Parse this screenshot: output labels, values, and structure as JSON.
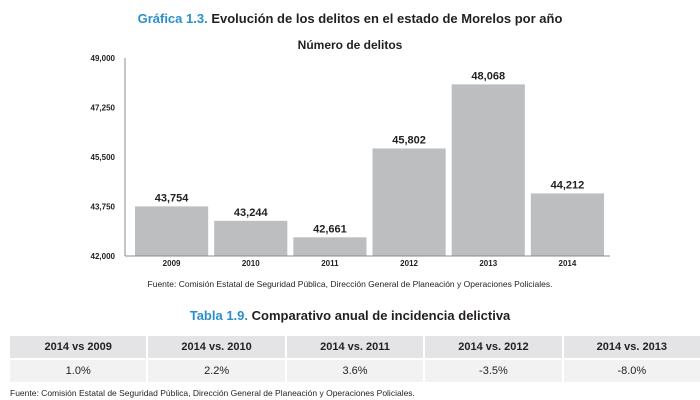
{
  "figure": {
    "title_number": "Gráfica 1.3.",
    "title_text": "Evolución de los delitos en el estado de Morelos por año",
    "source": "Fuente: Comisión Estatal de Seguridad Pública, Dirección General de Planeación y Operaciones Policiales."
  },
  "chart_data": {
    "type": "bar",
    "title": "Número de delitos",
    "xlabel": "",
    "ylabel": "",
    "categories": [
      "2009",
      "2010",
      "2011",
      "2012",
      "2013",
      "2014"
    ],
    "values": [
      43754,
      43244,
      42661,
      45802,
      48068,
      44212
    ],
    "value_labels": [
      "43,754",
      "43,244",
      "42,661",
      "45,802",
      "48,068",
      "44,212"
    ],
    "ylim": [
      42000,
      49000
    ],
    "yticks": [
      42000,
      43750,
      45500,
      47250,
      49000
    ],
    "ytick_labels": [
      "42,000",
      "43,750",
      "45,500",
      "47,250",
      "49,000"
    ],
    "grid": false,
    "bar_color": "#bcbec0"
  },
  "table": {
    "title_number": "Tabla 1.9.",
    "title_text": "Comparativo anual de incidencia delictiva",
    "headers": [
      "2014 vs 2009",
      "2014 vs. 2010",
      "2014 vs. 2011",
      "2014 vs. 2012",
      "2014 vs. 2013"
    ],
    "values": [
      "1.0%",
      "2.2%",
      "3.6%",
      "-3.5%",
      "-8.0%"
    ],
    "source": "Fuente: Comisión Estatal de Seguridad Pública, Dirección General de Planeación y Operaciones Policiales."
  },
  "colors": {
    "accent": "#2b8fc9",
    "header_bg": "#e4e4e6",
    "row_bg": "#f2f2f3"
  }
}
